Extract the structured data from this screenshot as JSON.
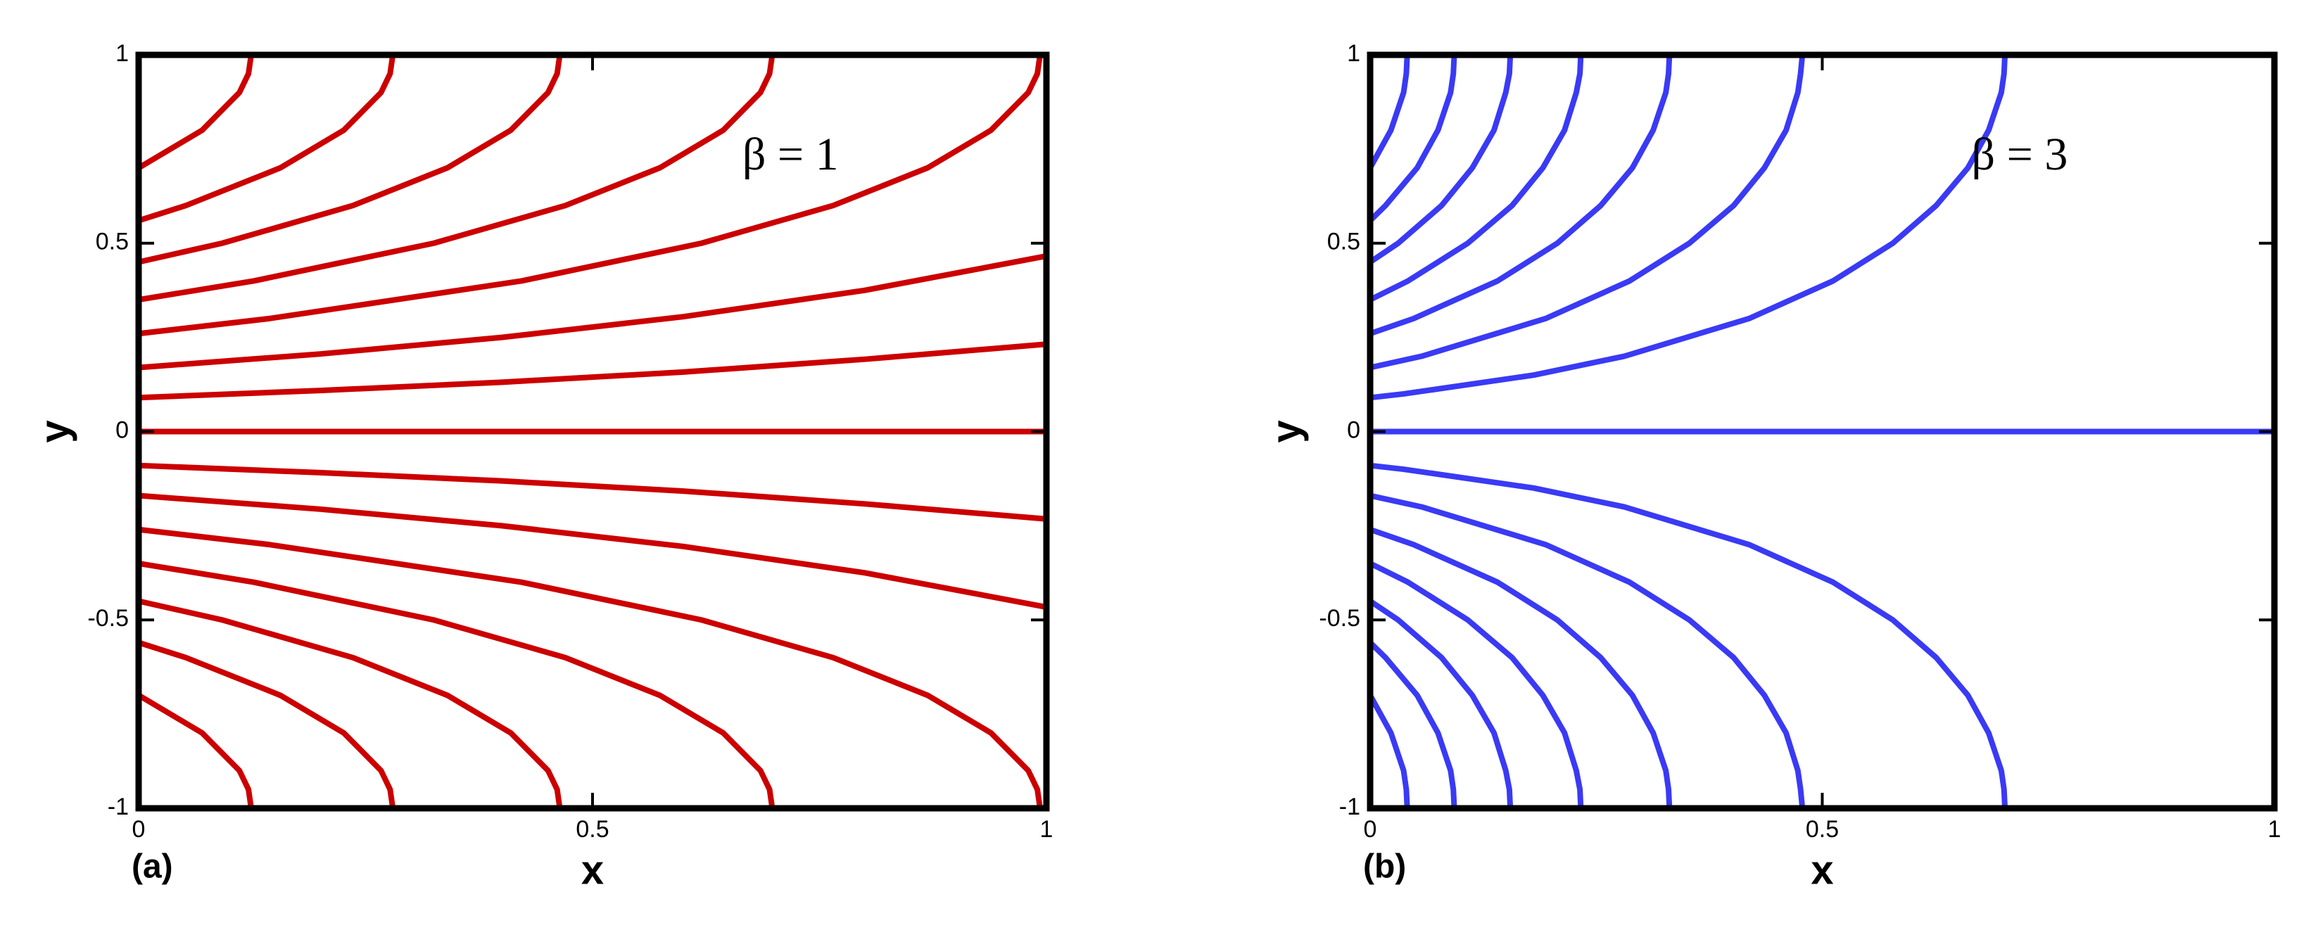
{
  "chart_data": [
    {
      "type": "line",
      "panel_label": "(a)",
      "annotation": "β = 1",
      "xlabel": "x",
      "ylabel": "y",
      "xlim": [
        0,
        1
      ],
      "ylim": [
        -1,
        1
      ],
      "xticks": [
        0,
        0.5,
        1
      ],
      "yticks": [
        -1,
        -0.5,
        0,
        0.5,
        1
      ],
      "series": [
        {
          "color": "#cc0000",
          "x": [
            0,
            0.07,
            0.111,
            0.121,
            0.124
          ],
          "values": [
            0.7,
            0.8,
            0.9,
            0.95,
            1
          ]
        },
        {
          "color": "#cc0000",
          "x": [
            0,
            0.052,
            0.156,
            0.226,
            0.267,
            0.277,
            0.28
          ],
          "values": [
            0.56,
            0.6,
            0.7,
            0.8,
            0.9,
            0.95,
            1
          ]
        },
        {
          "color": "#cc0000",
          "x": [
            0,
            0.092,
            0.236,
            0.34,
            0.41,
            0.451,
            0.461,
            0.464
          ],
          "values": [
            0.45,
            0.5,
            0.6,
            0.7,
            0.8,
            0.9,
            0.95,
            1
          ]
        },
        {
          "color": "#cc0000",
          "x": [
            0,
            0.127,
            0.325,
            0.47,
            0.574,
            0.644,
            0.685,
            0.695,
            0.698
          ],
          "values": [
            0.35,
            0.4,
            0.5,
            0.6,
            0.7,
            0.8,
            0.9,
            0.95,
            1
          ]
        },
        {
          "color": "#cc0000",
          "x": [
            0,
            0.144,
            0.422,
            0.62,
            0.765,
            0.869,
            0.939,
            0.98,
            0.99,
            0.993
          ],
          "values": [
            0.26,
            0.3,
            0.4,
            0.5,
            0.6,
            0.7,
            0.8,
            0.9,
            0.95,
            1
          ]
        },
        {
          "color": "#cc0000",
          "x": [
            0,
            0.2,
            0.4,
            0.6,
            0.8,
            1
          ],
          "values": [
            0.17,
            0.206,
            0.25,
            0.305,
            0.375,
            0.466
          ]
        },
        {
          "color": "#cc0000",
          "x": [
            0,
            0.2,
            0.4,
            0.6,
            0.8,
            1
          ],
          "values": [
            0.09,
            0.109,
            0.131,
            0.158,
            0.192,
            0.232
          ]
        },
        {
          "color": "#cc0000",
          "x": [
            0,
            1
          ],
          "values": [
            0,
            0
          ]
        },
        {
          "color": "#cc0000",
          "x": [
            0,
            0.2,
            0.4,
            0.6,
            0.8,
            1
          ],
          "values": [
            -0.09,
            -0.109,
            -0.131,
            -0.158,
            -0.192,
            -0.232
          ]
        },
        {
          "color": "#cc0000",
          "x": [
            0,
            0.2,
            0.4,
            0.6,
            0.8,
            1
          ],
          "values": [
            -0.17,
            -0.206,
            -0.25,
            -0.305,
            -0.375,
            -0.466
          ]
        },
        {
          "color": "#cc0000",
          "x": [
            0,
            0.144,
            0.422,
            0.62,
            0.765,
            0.869,
            0.939,
            0.98,
            0.99,
            0.993
          ],
          "values": [
            -0.26,
            -0.3,
            -0.4,
            -0.5,
            -0.6,
            -0.7,
            -0.8,
            -0.9,
            -0.95,
            -1
          ]
        },
        {
          "color": "#cc0000",
          "x": [
            0,
            0.127,
            0.325,
            0.47,
            0.574,
            0.644,
            0.685,
            0.695,
            0.698
          ],
          "values": [
            -0.35,
            -0.4,
            -0.5,
            -0.6,
            -0.7,
            -0.8,
            -0.9,
            -0.95,
            -1
          ]
        },
        {
          "color": "#cc0000",
          "x": [
            0,
            0.092,
            0.236,
            0.34,
            0.41,
            0.451,
            0.461,
            0.464
          ],
          "values": [
            -0.45,
            -0.5,
            -0.6,
            -0.7,
            -0.8,
            -0.9,
            -0.95,
            -1
          ]
        },
        {
          "color": "#cc0000",
          "x": [
            0,
            0.052,
            0.156,
            0.226,
            0.267,
            0.277,
            0.28
          ],
          "values": [
            -0.56,
            -0.6,
            -0.7,
            -0.8,
            -0.9,
            -0.95,
            -1
          ]
        },
        {
          "color": "#cc0000",
          "x": [
            0,
            0.07,
            0.111,
            0.121,
            0.124
          ],
          "values": [
            -0.7,
            -0.8,
            -0.9,
            -0.95,
            -1
          ]
        }
      ]
    },
    {
      "type": "line",
      "panel_label": "(b)",
      "annotation": "β = 3",
      "xlabel": "x",
      "ylabel": "y",
      "xlim": [
        0,
        1
      ],
      "ylim": [
        -1,
        1
      ],
      "xticks": [
        0,
        0.5,
        1
      ],
      "yticks": [
        -1,
        -0.5,
        0,
        0.5,
        1
      ],
      "series": [
        {
          "color": "#3a3af5",
          "x": [
            0,
            0.023,
            0.037,
            0.04,
            0.041
          ],
          "values": [
            0.7,
            0.8,
            0.9,
            0.95,
            1
          ]
        },
        {
          "color": "#3a3af5",
          "x": [
            0,
            0.017,
            0.052,
            0.075,
            0.089,
            0.092,
            0.093
          ],
          "values": [
            0.56,
            0.6,
            0.7,
            0.8,
            0.9,
            0.95,
            1
          ]
        },
        {
          "color": "#3a3af5",
          "x": [
            0,
            0.031,
            0.079,
            0.113,
            0.137,
            0.15,
            0.154,
            0.155
          ],
          "values": [
            0.45,
            0.5,
            0.6,
            0.7,
            0.8,
            0.9,
            0.95,
            1
          ]
        },
        {
          "color": "#3a3af5",
          "x": [
            0,
            0.042,
            0.108,
            0.157,
            0.191,
            0.215,
            0.228,
            0.232,
            0.233
          ],
          "values": [
            0.35,
            0.4,
            0.5,
            0.6,
            0.7,
            0.8,
            0.9,
            0.95,
            1
          ]
        },
        {
          "color": "#3a3af5",
          "x": [
            0,
            0.048,
            0.141,
            0.207,
            0.255,
            0.29,
            0.313,
            0.327,
            0.33,
            0.331
          ],
          "values": [
            0.26,
            0.3,
            0.4,
            0.5,
            0.6,
            0.7,
            0.8,
            0.9,
            0.95,
            1
          ]
        },
        {
          "color": "#3a3af5",
          "x": [
            0,
            0.057,
            0.194,
            0.287,
            0.353,
            0.402,
            0.436,
            0.46,
            0.473,
            0.476,
            0.478
          ],
          "values": [
            0.17,
            0.2,
            0.3,
            0.4,
            0.5,
            0.6,
            0.7,
            0.8,
            0.9,
            0.95,
            1
          ]
        },
        {
          "color": "#3a3af5",
          "x": [
            0,
            0.037,
            0.181,
            0.281,
            0.419,
            0.512,
            0.578,
            0.626,
            0.661,
            0.684,
            0.698,
            0.701,
            0.702
          ],
          "values": [
            0.09,
            0.1,
            0.15,
            0.2,
            0.3,
            0.4,
            0.5,
            0.6,
            0.7,
            0.8,
            0.9,
            0.95,
            1
          ]
        },
        {
          "color": "#3a3af5",
          "x": [
            0,
            1
          ],
          "values": [
            0,
            0
          ]
        },
        {
          "color": "#3a3af5",
          "x": [
            0,
            0.037,
            0.181,
            0.281,
            0.419,
            0.512,
            0.578,
            0.626,
            0.661,
            0.684,
            0.698,
            0.701,
            0.702
          ],
          "values": [
            -0.09,
            -0.1,
            -0.15,
            -0.2,
            -0.3,
            -0.4,
            -0.5,
            -0.6,
            -0.7,
            -0.8,
            -0.9,
            -0.95,
            -1
          ]
        },
        {
          "color": "#3a3af5",
          "x": [
            0,
            0.057,
            0.194,
            0.287,
            0.353,
            0.402,
            0.436,
            0.46,
            0.473,
            0.476,
            0.478
          ],
          "values": [
            -0.17,
            -0.2,
            -0.3,
            -0.4,
            -0.5,
            -0.6,
            -0.7,
            -0.8,
            -0.9,
            -0.95,
            -1
          ]
        },
        {
          "color": "#3a3af5",
          "x": [
            0,
            0.048,
            0.141,
            0.207,
            0.255,
            0.29,
            0.313,
            0.327,
            0.33,
            0.331
          ],
          "values": [
            -0.26,
            -0.3,
            -0.4,
            -0.5,
            -0.6,
            -0.7,
            -0.8,
            -0.9,
            -0.95,
            -1
          ]
        },
        {
          "color": "#3a3af5",
          "x": [
            0,
            0.042,
            0.108,
            0.157,
            0.191,
            0.215,
            0.228,
            0.232,
            0.233
          ],
          "values": [
            -0.35,
            -0.4,
            -0.5,
            -0.6,
            -0.7,
            -0.8,
            -0.9,
            -0.95,
            -1
          ]
        },
        {
          "color": "#3a3af5",
          "x": [
            0,
            0.031,
            0.079,
            0.113,
            0.137,
            0.15,
            0.154,
            0.155
          ],
          "values": [
            -0.45,
            -0.5,
            -0.6,
            -0.7,
            -0.8,
            -0.9,
            -0.95,
            -1
          ]
        },
        {
          "color": "#3a3af5",
          "x": [
            0,
            0.017,
            0.052,
            0.075,
            0.089,
            0.092,
            0.093
          ],
          "values": [
            -0.56,
            -0.6,
            -0.7,
            -0.8,
            -0.9,
            -0.95,
            -1
          ]
        },
        {
          "color": "#3a3af5",
          "x": [
            0,
            0.023,
            0.037,
            0.04,
            0.041
          ],
          "values": [
            -0.7,
            -0.8,
            -0.9,
            -0.95,
            -1
          ]
        }
      ]
    }
  ]
}
